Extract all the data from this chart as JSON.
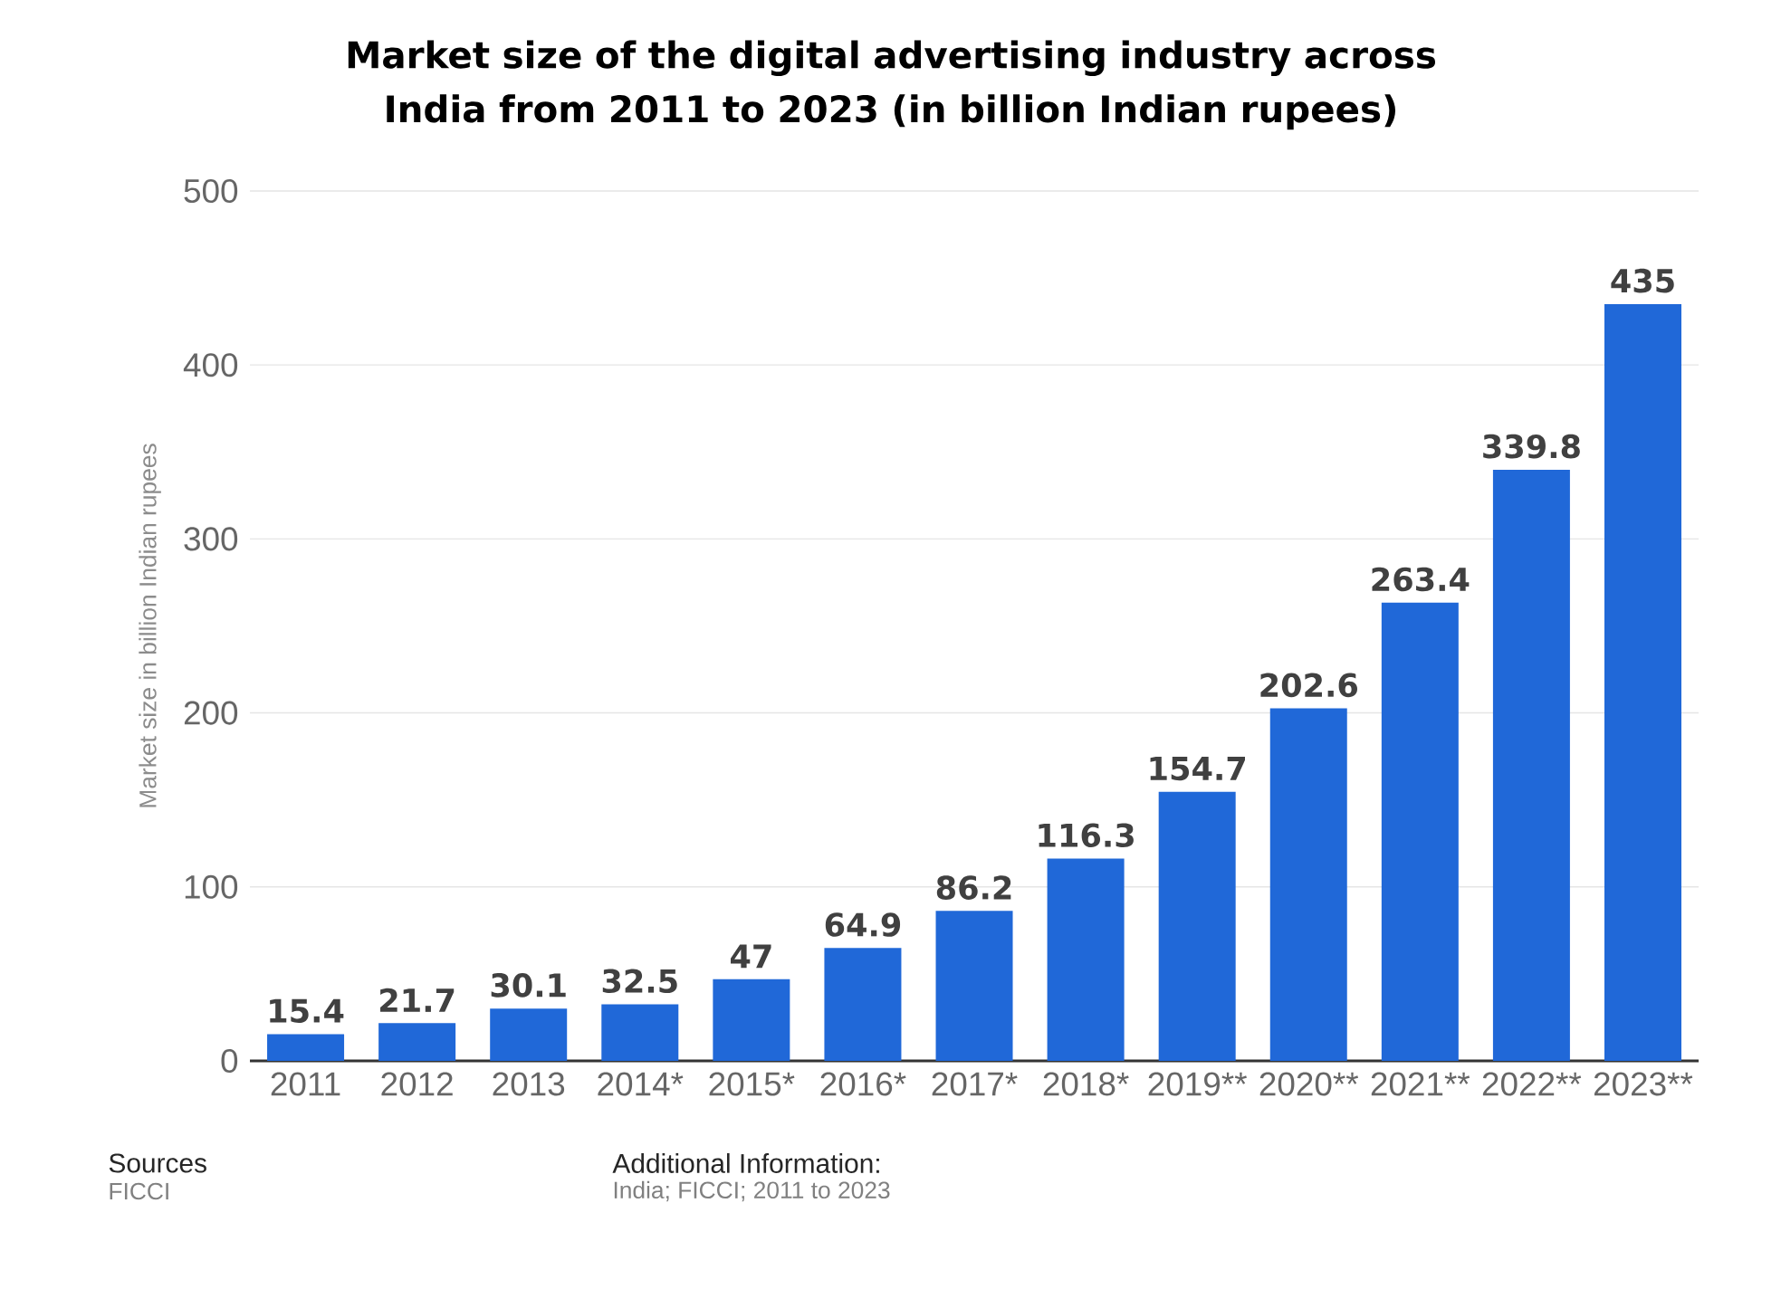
{
  "chart_data": {
    "type": "bar",
    "title": "Market size of the digital advertising industry across India from 2011 to 2023 (in billion Indian rupees)",
    "ylabel": "Market size in billion Indian rupees",
    "categories": [
      "2011",
      "2012",
      "2013",
      "2014*",
      "2015*",
      "2016*",
      "2017*",
      "2018*",
      "2019**",
      "2020**",
      "2021**",
      "2022**",
      "2023**"
    ],
    "values": [
      15.4,
      21.7,
      30.1,
      32.5,
      47,
      64.9,
      86.2,
      116.3,
      154.7,
      202.6,
      263.4,
      339.8,
      435
    ],
    "color": "#2068d8",
    "ylim": [
      0,
      500
    ],
    "yticks": [
      0,
      100,
      200,
      300,
      400,
      500
    ],
    "grid": "y",
    "data_labels": true,
    "annotations": [
      "Sources",
      "FICCI",
      "Additional Information:",
      "India; FICCI; 2011 to 2023"
    ]
  }
}
